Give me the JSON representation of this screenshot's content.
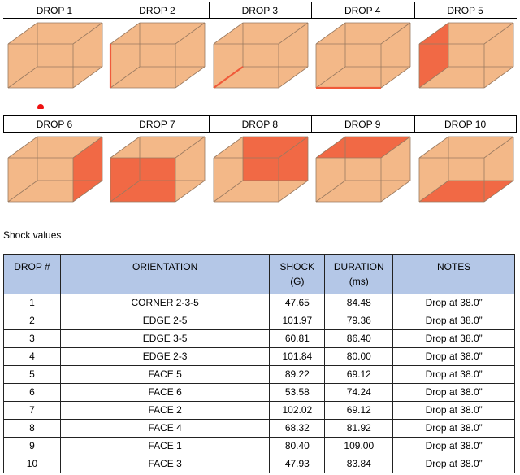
{
  "drops": [
    {
      "label": "DROP 1",
      "highlight": "corner-2-3-5"
    },
    {
      "label": "DROP 2",
      "highlight": "edge-2-5"
    },
    {
      "label": "DROP 3",
      "highlight": "edge-3-5"
    },
    {
      "label": "DROP 4",
      "highlight": "edge-2-3"
    },
    {
      "label": "DROP 5",
      "highlight": "face-5"
    },
    {
      "label": "DROP 6",
      "highlight": "face-6"
    },
    {
      "label": "DROP 7",
      "highlight": "face-2"
    },
    {
      "label": "DROP 8",
      "highlight": "face-4"
    },
    {
      "label": "DROP 9",
      "highlight": "face-1"
    },
    {
      "label": "DROP 10",
      "highlight": "face-3"
    }
  ],
  "colors": {
    "box": "#f3b888",
    "box_edge": "#9a7a60",
    "highlight": "#f05a3a",
    "header_bg": "#b4c7e7"
  },
  "caption": "Shock values",
  "table": {
    "headers": {
      "drop": "DROP #",
      "orientation": "ORIENTATION",
      "shock": "SHOCK",
      "shock_unit": "(G)",
      "duration": "DURATION",
      "duration_unit": "(ms)",
      "notes": "NOTES"
    },
    "rows": [
      {
        "drop": "1",
        "orientation": "CORNER 2-3-5",
        "shock": "47.65",
        "duration": "84.48",
        "notes": "Drop at 38.0”"
      },
      {
        "drop": "2",
        "orientation": "EDGE 2-5",
        "shock": "101.97",
        "duration": "79.36",
        "notes": "Drop at 38.0”"
      },
      {
        "drop": "3",
        "orientation": "EDGE 3-5",
        "shock": "60.81",
        "duration": "86.40",
        "notes": "Drop at 38.0”"
      },
      {
        "drop": "4",
        "orientation": "EDGE 2-3",
        "shock": "101.84",
        "duration": "80.00",
        "notes": "Drop at 38.0”"
      },
      {
        "drop": "5",
        "orientation": "FACE 5",
        "shock": "89.22",
        "duration": "69.12",
        "notes": "Drop at 38.0”"
      },
      {
        "drop": "6",
        "orientation": "FACE 6",
        "shock": "53.58",
        "duration": "74.24",
        "notes": "Drop at 38.0”"
      },
      {
        "drop": "7",
        "orientation": "FACE 2",
        "shock": "102.02",
        "duration": "69.12",
        "notes": "Drop at 38.0”"
      },
      {
        "drop": "8",
        "orientation": "FACE 4",
        "shock": "68.32",
        "duration": "81.92",
        "notes": "Drop at 38.0”"
      },
      {
        "drop": "9",
        "orientation": "FACE 1",
        "shock": "80.40",
        "duration": "109.00",
        "notes": "Drop at 38.0”"
      },
      {
        "drop": "10",
        "orientation": "FACE 3",
        "shock": "47.93",
        "duration": "83.84",
        "notes": "Drop at 38.0”"
      }
    ]
  }
}
